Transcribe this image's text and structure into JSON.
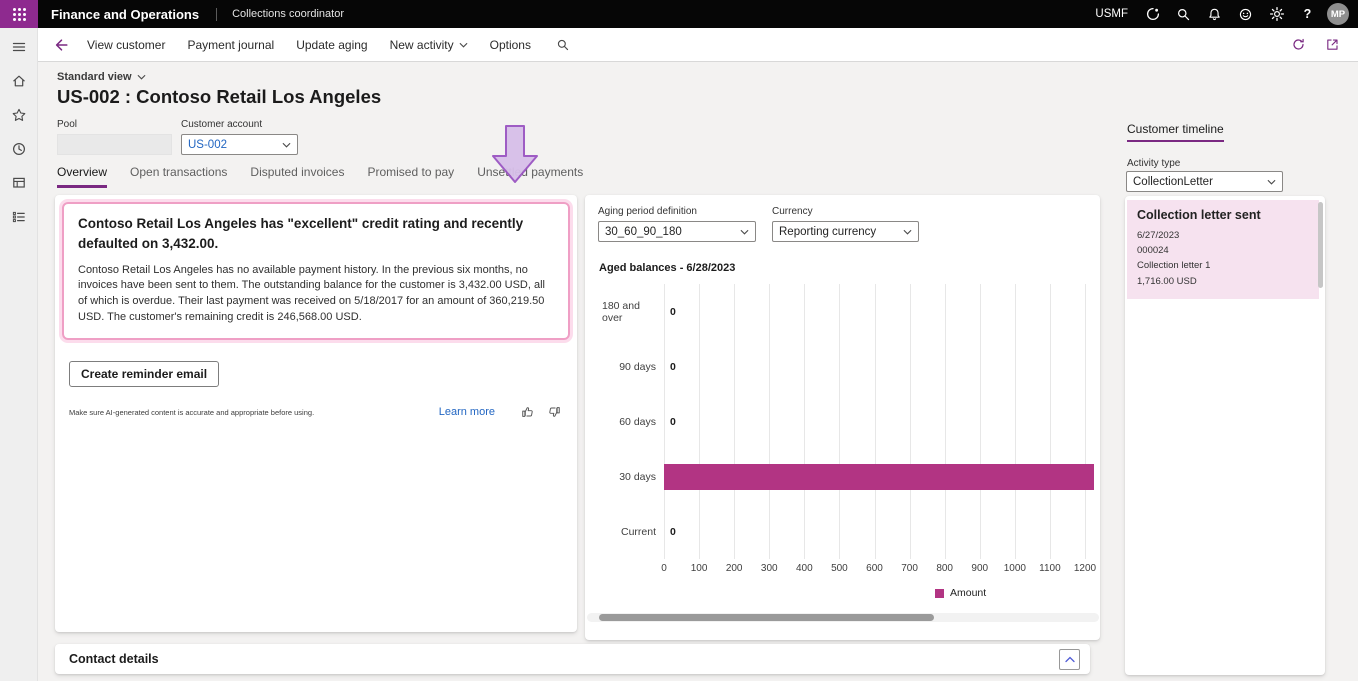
{
  "app": {
    "title": "Finance and Operations",
    "breadcrumb": "Collections coordinator",
    "company": "USMF",
    "avatar_initials": "MP"
  },
  "icons": {
    "topbar": [
      "copilot-icon",
      "search-icon",
      "notifications-icon",
      "feedback-icon",
      "settings-icon",
      "help-icon"
    ],
    "leftnav": [
      "menu-icon",
      "home-icon",
      "favorites-star-icon",
      "recent-clock-icon",
      "workspace-icon",
      "task-list-icon"
    ]
  },
  "toolbar": {
    "items": [
      "View customer",
      "Payment journal",
      "Update aging",
      "New activity",
      "Options"
    ]
  },
  "view_selector": "Standard view",
  "page_title": "US-002 : Contoso Retail Los Angeles",
  "fields": {
    "pool_label": "Pool",
    "pool_value": "",
    "customer_account_label": "Customer account",
    "customer_account_value": "US-002"
  },
  "tabs": [
    "Overview",
    "Open transactions",
    "Disputed invoices",
    "Promised to pay",
    "Unsettled payments"
  ],
  "copilot": {
    "headline": "Contoso Retail Los Angeles has \"excellent\" credit rating and recently defaulted on 3,432.00.",
    "body": "Contoso Retail Los Angeles has no available payment history. In the previous six months, no invoices have been sent to them. The outstanding balance for the customer is 3,432.00 USD, all of which is overdue. Their last payment was received on 5/18/2017 for an amount of 360,219.50 USD. The customer's remaining credit is 246,568.00 USD.",
    "action_button": "Create reminder email",
    "disclaimer": "Make sure AI-generated content is accurate and appropriate before using.",
    "learn_more": "Learn more"
  },
  "aging_controls": {
    "period_label": "Aging period definition",
    "period_value": "30_60_90_180",
    "currency_label": "Currency",
    "currency_value": "Reporting currency"
  },
  "chart_data": {
    "type": "bar",
    "orientation": "horizontal",
    "title": "Aged balances - 6/28/2023",
    "categories": [
      "180 and over",
      "90 days",
      "60 days",
      "30 days",
      "Current"
    ],
    "values": [
      0,
      0,
      0,
      1225,
      0
    ],
    "value_labels": [
      "0",
      "0",
      "0",
      "",
      "0"
    ],
    "xlim": [
      0,
      1200
    ],
    "xticks": [
      0,
      100,
      200,
      300,
      400,
      500,
      600,
      700,
      800,
      900,
      1000,
      1100,
      1200
    ],
    "grid": true,
    "legend": [
      {
        "label": "Amount",
        "color": "#b23483"
      }
    ],
    "legend_position": "bottom"
  },
  "timeline": {
    "header": "Customer timeline",
    "activity_type_label": "Activity type",
    "activity_type_value": "CollectionLetter",
    "entries": [
      {
        "title": "Collection letter sent",
        "date": "6/27/2023",
        "reference": "000024",
        "description": "Collection letter 1",
        "amount": "1,716.00 USD"
      }
    ]
  },
  "contact_section": {
    "title": "Contact details"
  },
  "colors": {
    "brand_purple": "#8e2a8f",
    "accent_purple": "#7a2982",
    "link_blue": "#2266c2",
    "bar_magenta": "#b23483",
    "timeline_pink": "#f6e2ef",
    "copilot_border_pink": "#ef9fc5"
  }
}
